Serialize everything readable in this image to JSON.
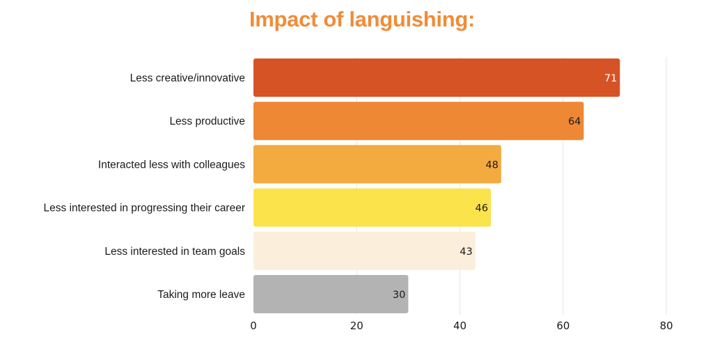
{
  "chart_data": {
    "type": "bar",
    "orientation": "horizontal",
    "title": "Impact of languishing:",
    "xlabel": "",
    "ylabel": "",
    "categories": [
      "Less creative/innovative",
      "Less productive",
      "Interacted less with colleagues",
      "Less interested in progressing their career",
      "Less interested in team goals",
      "Taking more leave"
    ],
    "values": [
      71,
      64,
      48,
      46,
      43,
      30
    ],
    "value_labels": [
      "71",
      "64",
      "48",
      "46",
      "43",
      "30"
    ],
    "bar_colors": [
      "#d65326",
      "#ef8834",
      "#f3aa3f",
      "#fbe34b",
      "#fbeedb",
      "#b3b3b3"
    ],
    "value_label_colors": [
      "#ffffff",
      "#1a1a1a",
      "#1a1a1a",
      "#1a1a1a",
      "#1a1a1a",
      "#1a1a1a"
    ],
    "xlim": [
      0,
      80
    ],
    "xticks": [
      0,
      20,
      40,
      60,
      80
    ],
    "xtick_labels": [
      "0",
      "20",
      "40",
      "60",
      "80"
    ],
    "grid": true,
    "legend": "none"
  },
  "colors": {
    "title": "#f08c38",
    "grid": "#e6e6e6"
  }
}
